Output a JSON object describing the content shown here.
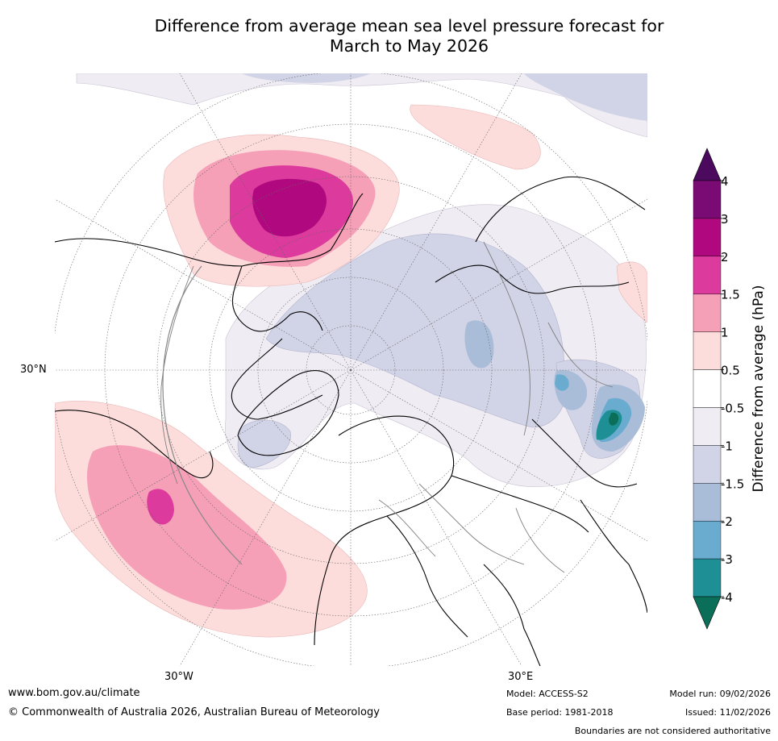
{
  "title": {
    "line1": "Difference from average mean sea level pressure forecast for",
    "line2": "March to May 2026"
  },
  "map": {
    "graticule_labels": {
      "lat": "30°N",
      "lon_west": "30°W",
      "lon_east": "30°E"
    }
  },
  "colorbar": {
    "label": "Difference from average (hPa)",
    "ticks": [
      "4",
      "3",
      "2",
      "1.5",
      "1",
      "0.5",
      "-0.5",
      "-1",
      "-1.5",
      "-2",
      "-3",
      "-4"
    ],
    "colors": {
      "above_4": "#4b0a5e",
      "3_to_4": "#7a0b74",
      "2_to_3": "#b0097f",
      "1_5_to_2": "#dc3a9c",
      "1_to_1_5": "#f6a0b8",
      "0_5_to_1": "#fddddc",
      "neutral": "#ffffff",
      "m1_to_m0_5": "#f0ecf3",
      "m1_5_to_m1": "#d1d3e6",
      "m2_to_m1_5": "#a9bcd8",
      "m3_to_m2": "#6aaccf",
      "m4_to_m3": "#1e8f95",
      "below_m4": "#0a6e58"
    }
  },
  "footer": {
    "website": "www.bom.gov.au/climate",
    "copyright": "© Commonwealth of Australia 2026, Australian Bureau of Meteorology",
    "model": "Model: ACCESS-S2",
    "base_period": "Base period: 1981-2018",
    "model_run": "Model run: 09/02/2026",
    "issued": "Issued: 11/02/2026",
    "disclaimer": "Boundaries are not considered authoritative"
  }
}
